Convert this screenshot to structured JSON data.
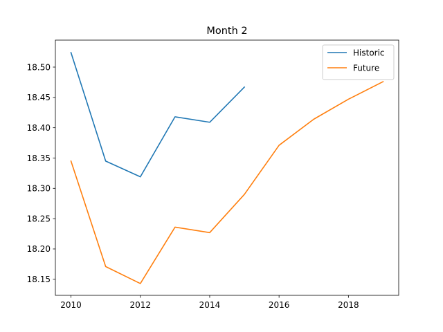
{
  "chart_data": {
    "type": "line",
    "title": "Month 2",
    "xlabel": "",
    "ylabel": "",
    "xlim": [
      2009.55,
      2019.45
    ],
    "ylim": [
      18.1235,
      18.5445
    ],
    "x_ticks": [
      2010,
      2012,
      2014,
      2016,
      2018
    ],
    "x_tick_labels": [
      "2010",
      "2012",
      "2014",
      "2016",
      "2018"
    ],
    "y_ticks": [
      18.15,
      18.2,
      18.25,
      18.3,
      18.35,
      18.4,
      18.45,
      18.5
    ],
    "y_tick_labels": [
      "18.15",
      "18.20",
      "18.25",
      "18.30",
      "18.35",
      "18.40",
      "18.45",
      "18.50"
    ],
    "grid": false,
    "legend_position": "top-right",
    "series": [
      {
        "name": "Historic",
        "color": "#1f77b4",
        "x": [
          2010,
          2011,
          2012,
          2013,
          2014,
          2015
        ],
        "y": [
          18.524,
          18.345,
          18.319,
          18.418,
          18.409,
          18.467
        ]
      },
      {
        "name": "Future",
        "color": "#ff7f0e",
        "x": [
          2010,
          2011,
          2012,
          2013,
          2014,
          2015,
          2016,
          2017,
          2018,
          2019
        ],
        "y": [
          18.345,
          18.171,
          18.143,
          18.236,
          18.227,
          18.29,
          18.371,
          18.414,
          18.447,
          18.476
        ]
      }
    ]
  }
}
